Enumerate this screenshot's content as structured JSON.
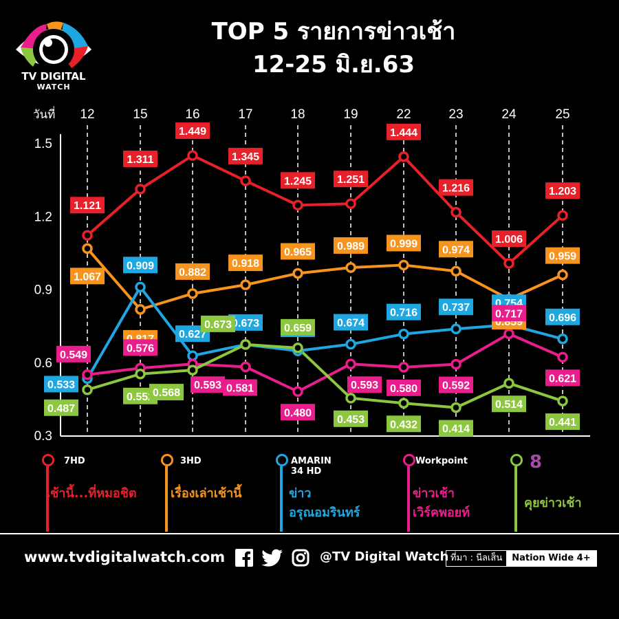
{
  "brand": {
    "name": "TV DIGITAL",
    "sub": "WATCH"
  },
  "title_line1": "TOP 5 รายการข่าวเช้า",
  "title_line2": "12-25 มิ.ย.63",
  "chart_data": {
    "type": "line",
    "x_label": "วันที่",
    "categories": [
      "12",
      "15",
      "16",
      "17",
      "18",
      "19",
      "22",
      "23",
      "24",
      "25"
    ],
    "y_ticks": [
      "1.5",
      "1.2",
      "0.9",
      "0.6",
      "0.3"
    ],
    "ylim": [
      0.3,
      1.5
    ],
    "grid": "vertical dashed",
    "series": [
      {
        "channel": "7HD",
        "name": "เช้านี้...ที่หมอชิต",
        "color": "#e8202a",
        "values": [
          1.121,
          1.311,
          1.449,
          1.345,
          1.245,
          1.251,
          1.444,
          1.216,
          1.006,
          1.203
        ],
        "labels": [
          "1.121",
          "1.311",
          "1.449",
          "1.345",
          "1.245",
          "1.251",
          "1.444",
          "1.216",
          "1.006",
          "1.203"
        ]
      },
      {
        "channel": "3HD",
        "name": "เรื่องเล่าเช้านี้",
        "color": "#f7941d",
        "values": [
          1.067,
          0.817,
          0.882,
          0.918,
          0.965,
          0.989,
          0.999,
          0.974,
          0.859,
          0.959
        ],
        "labels": [
          "1.067",
          "0.817",
          "0.882",
          "0.918",
          "0.965",
          "0.989",
          "0.999",
          "0.974",
          "0.859",
          "0.959"
        ]
      },
      {
        "channel": "AMARIN 34 HD",
        "name_lines": [
          "ข่าว",
          "อรุณอมรินทร์"
        ],
        "color": "#1ea7e1",
        "values": [
          0.533,
          0.909,
          0.627,
          0.673,
          0.647,
          0.674,
          0.716,
          0.737,
          0.754,
          0.696
        ],
        "labels": [
          "0.533",
          "0.909",
          "0.627",
          "0.673",
          "0.647",
          "0.674",
          "0.716",
          "0.737",
          "0.754",
          "0.696"
        ]
      },
      {
        "channel": "Workpoint",
        "name_lines": [
          "ข่าวเช้า",
          "เวิร์คพอยท์"
        ],
        "color": "#e91e8c",
        "values": [
          0.549,
          0.576,
          0.593,
          0.581,
          0.48,
          0.593,
          0.58,
          0.592,
          0.717,
          0.621
        ],
        "labels": [
          "0.549",
          "0.576",
          "0.593",
          "0.581",
          "0.480",
          "0.593",
          "0.580",
          "0.592",
          "0.717",
          "0.621"
        ]
      },
      {
        "channel": "8",
        "name": "คุยข่าวเช้า",
        "color": "#8dc63f",
        "values": [
          0.487,
          0.552,
          0.568,
          0.673,
          0.659,
          0.453,
          0.432,
          0.414,
          0.514,
          0.441
        ],
        "labels": [
          "0.487",
          "0.552",
          "0.568",
          "0.673",
          "0.659",
          "0.453",
          "0.432",
          "0.414",
          "0.514",
          "0.441"
        ]
      }
    ]
  },
  "footer": {
    "url": "www.tvdigitalwatch.com",
    "handle": "@TV Digital Watch",
    "source_label": "ที่มา : นีลเส็น",
    "source_value": "Nation Wide 4+"
  },
  "icons": [
    "eye-logo-icon",
    "facebook-icon",
    "twitter-icon",
    "instagram-icon"
  ]
}
